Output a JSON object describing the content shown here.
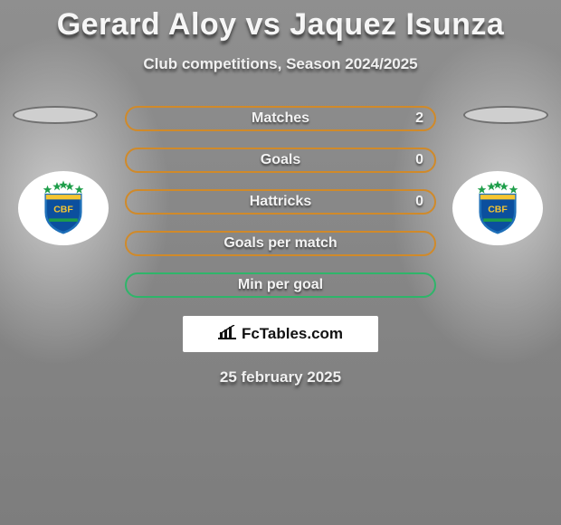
{
  "title": "Gerard Aloy vs Jaquez Isunza",
  "subtitle": "Club competitions, Season 2024/2025",
  "date": "25 february 2025",
  "brand": "FcTables.com",
  "colors": {
    "row_border_filled": "#d08a2a",
    "row_border_empty": "#2fb56a"
  },
  "rows": [
    {
      "label": "Matches",
      "value": "2",
      "has_value": true,
      "color_key": "row_border_filled"
    },
    {
      "label": "Goals",
      "value": "0",
      "has_value": true,
      "color_key": "row_border_filled"
    },
    {
      "label": "Hattricks",
      "value": "0",
      "has_value": true,
      "color_key": "row_border_filled"
    },
    {
      "label": "Goals per match",
      "value": "",
      "has_value": false,
      "color_key": "row_border_filled"
    },
    {
      "label": "Min per goal",
      "value": "",
      "has_value": false,
      "color_key": "row_border_empty"
    }
  ],
  "badge": {
    "crest_outer": "#1e6fb8",
    "crest_inner": "#0b4f9e",
    "star_color": "#1e9e4a",
    "band_color": "#f5c531",
    "text": "CBF"
  }
}
